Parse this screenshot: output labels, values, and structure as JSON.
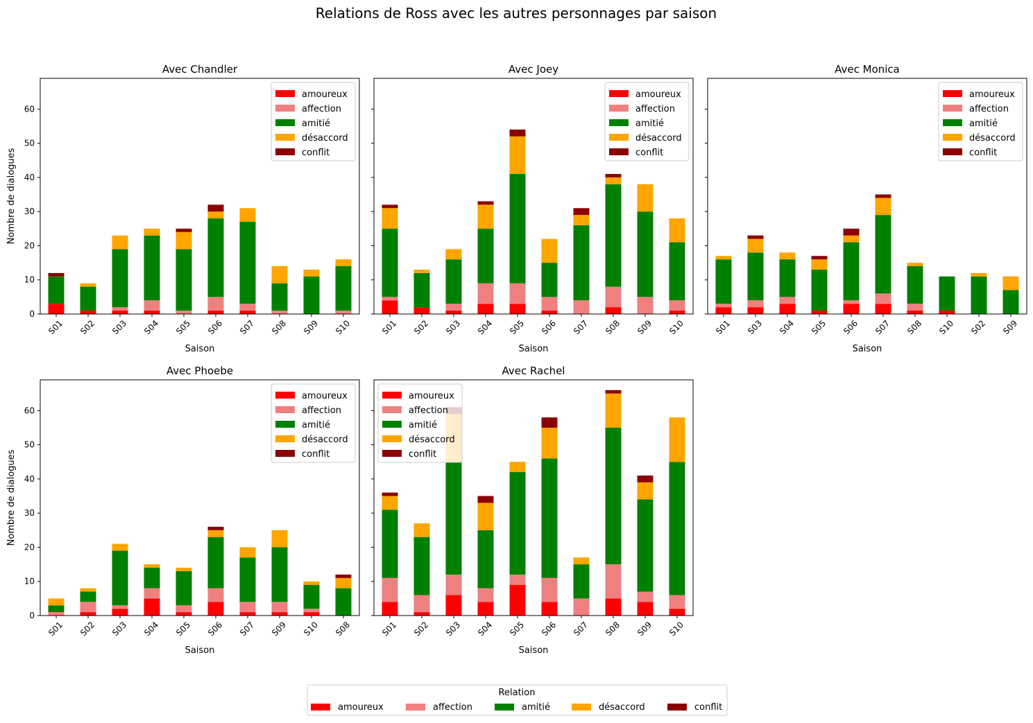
{
  "figure": {
    "title": "Relations de Ross avec les autres personnages par saison",
    "legend_title": "Relation"
  },
  "relations": [
    "amoureux",
    "affection",
    "amitié",
    "désaccord",
    "conflit"
  ],
  "colors": {
    "amoureux": "#ff0000",
    "affection": "#f08080",
    "amitié": "#008000",
    "désaccord": "#ffa500",
    "conflit": "#8b0000"
  },
  "chart_data": [
    {
      "type": "bar",
      "stacked": true,
      "title": "Avec Chandler",
      "xlabel": "Saison",
      "ylabel": "Nombre de dialogues",
      "ylim": [
        0,
        69
      ],
      "yticks": [
        0,
        10,
        20,
        30,
        40,
        50,
        60
      ],
      "legend_position": "top-right",
      "categories": [
        "S01",
        "S02",
        "S03",
        "S04",
        "S05",
        "S06",
        "S07",
        "S08",
        "S09",
        "S10"
      ],
      "series": [
        {
          "name": "amoureux",
          "values": [
            3,
            1,
            1,
            1,
            0,
            1,
            1,
            0,
            0,
            0
          ]
        },
        {
          "name": "affection",
          "values": [
            0,
            0,
            1,
            3,
            1,
            4,
            2,
            1,
            0,
            1
          ]
        },
        {
          "name": "amitié",
          "values": [
            8,
            7,
            17,
            19,
            18,
            23,
            24,
            8,
            11,
            13
          ]
        },
        {
          "name": "désaccord",
          "values": [
            0,
            1,
            4,
            2,
            5,
            2,
            4,
            5,
            2,
            2
          ]
        },
        {
          "name": "conflit",
          "values": [
            1,
            0,
            0,
            0,
            1,
            2,
            0,
            0,
            0,
            0
          ]
        }
      ]
    },
    {
      "type": "bar",
      "stacked": true,
      "title": "Avec Joey",
      "xlabel": "Saison",
      "ylabel": "",
      "ylim": [
        0,
        69
      ],
      "yticks": [
        0,
        10,
        20,
        30,
        40,
        50,
        60
      ],
      "legend_position": "top-right",
      "categories": [
        "S01",
        "S02",
        "S03",
        "S04",
        "S05",
        "S06",
        "S07",
        "S08",
        "S09",
        "S10"
      ],
      "series": [
        {
          "name": "amoureux",
          "values": [
            4,
            2,
            1,
            3,
            3,
            1,
            0,
            2,
            0,
            1
          ]
        },
        {
          "name": "affection",
          "values": [
            1,
            0,
            2,
            6,
            6,
            4,
            4,
            6,
            5,
            3
          ]
        },
        {
          "name": "amitié",
          "values": [
            20,
            10,
            13,
            16,
            32,
            10,
            22,
            30,
            25,
            17
          ]
        },
        {
          "name": "désaccord",
          "values": [
            6,
            1,
            3,
            7,
            11,
            7,
            3,
            2,
            8,
            7
          ]
        },
        {
          "name": "conflit",
          "values": [
            1,
            0,
            0,
            1,
            2,
            0,
            2,
            1,
            0,
            0
          ]
        }
      ]
    },
    {
      "type": "bar",
      "stacked": true,
      "title": "Avec Monica",
      "xlabel": "Saison",
      "ylabel": "",
      "ylim": [
        0,
        69
      ],
      "yticks": [
        0,
        10,
        20,
        30,
        40,
        50,
        60
      ],
      "legend_position": "top-right",
      "categories": [
        "S01",
        "S03",
        "S04",
        "S05",
        "S06",
        "S07",
        "S08",
        "S10",
        "S02",
        "S09"
      ],
      "series": [
        {
          "name": "amoureux",
          "values": [
            2,
            2,
            3,
            1,
            3,
            3,
            1,
            1,
            0,
            0
          ]
        },
        {
          "name": "affection",
          "values": [
            1,
            2,
            2,
            0,
            1,
            3,
            2,
            0,
            0,
            0
          ]
        },
        {
          "name": "amitié",
          "values": [
            13,
            14,
            11,
            12,
            17,
            23,
            11,
            10,
            11,
            7
          ]
        },
        {
          "name": "désaccord",
          "values": [
            1,
            4,
            2,
            3,
            2,
            5,
            1,
            0,
            1,
            4
          ]
        },
        {
          "name": "conflit",
          "values": [
            0,
            1,
            0,
            1,
            2,
            1,
            0,
            0,
            0,
            0
          ]
        }
      ]
    },
    {
      "type": "bar",
      "stacked": true,
      "title": "Avec Phoebe",
      "xlabel": "Saison",
      "ylabel": "Nombre de dialogues",
      "ylim": [
        0,
        69
      ],
      "yticks": [
        0,
        10,
        20,
        30,
        40,
        50,
        60
      ],
      "legend_position": "top-right",
      "categories": [
        "S01",
        "S02",
        "S03",
        "S04",
        "S05",
        "S06",
        "S07",
        "S09",
        "S10",
        "S08"
      ],
      "series": [
        {
          "name": "amoureux",
          "values": [
            0,
            1,
            2,
            5,
            1,
            4,
            1,
            1,
            1,
            0
          ]
        },
        {
          "name": "affection",
          "values": [
            1,
            3,
            1,
            3,
            2,
            4,
            3,
            3,
            1,
            0
          ]
        },
        {
          "name": "amitié",
          "values": [
            2,
            3,
            16,
            6,
            10,
            15,
            13,
            16,
            7,
            8
          ]
        },
        {
          "name": "désaccord",
          "values": [
            2,
            1,
            2,
            1,
            1,
            2,
            3,
            5,
            1,
            3
          ]
        },
        {
          "name": "conflit",
          "values": [
            0,
            0,
            0,
            0,
            0,
            1,
            0,
            0,
            0,
            1
          ]
        }
      ]
    },
    {
      "type": "bar",
      "stacked": true,
      "title": "Avec Rachel",
      "xlabel": "Saison",
      "ylabel": "",
      "ylim": [
        0,
        69
      ],
      "yticks": [
        0,
        10,
        20,
        30,
        40,
        50,
        60
      ],
      "legend_position": "top-left",
      "categories": [
        "S01",
        "S02",
        "S03",
        "S04",
        "S05",
        "S06",
        "S07",
        "S08",
        "S09",
        "S10"
      ],
      "series": [
        {
          "name": "amoureux",
          "values": [
            4,
            1,
            6,
            4,
            9,
            4,
            0,
            5,
            4,
            2
          ]
        },
        {
          "name": "affection",
          "values": [
            7,
            5,
            6,
            4,
            3,
            7,
            5,
            10,
            3,
            4
          ]
        },
        {
          "name": "amitié",
          "values": [
            20,
            17,
            33,
            17,
            30,
            35,
            10,
            40,
            27,
            39
          ]
        },
        {
          "name": "désaccord",
          "values": [
            4,
            4,
            14,
            8,
            3,
            9,
            2,
            10,
            5,
            13
          ]
        },
        {
          "name": "conflit",
          "values": [
            1,
            0,
            2,
            2,
            0,
            3,
            0,
            1,
            2,
            0
          ]
        }
      ]
    }
  ]
}
